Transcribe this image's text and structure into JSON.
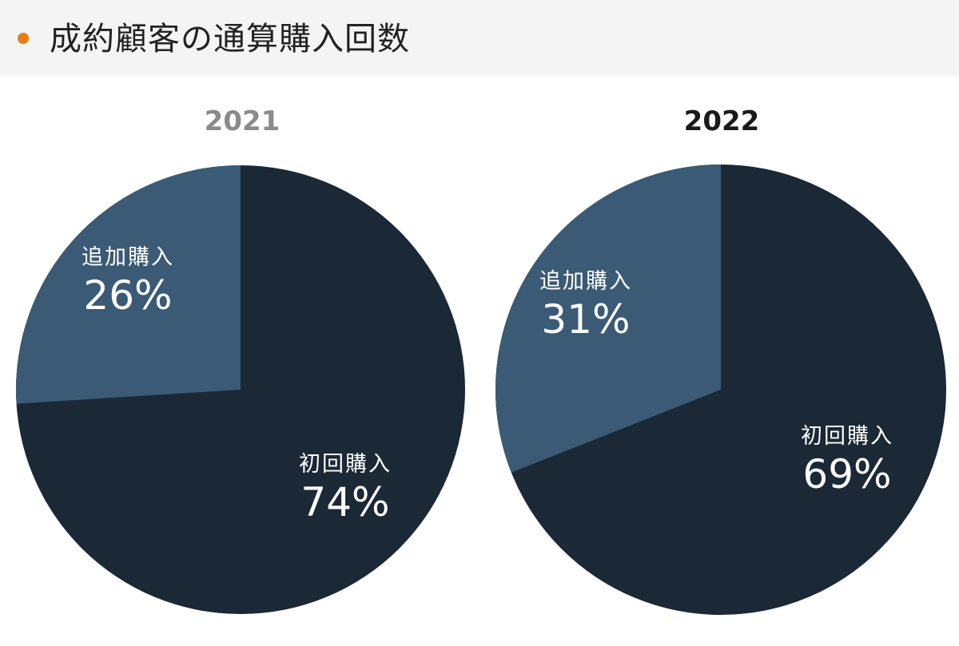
{
  "header": {
    "title": "成約顧客の通算購入回数",
    "bullet_color": "#e67e0f"
  },
  "colors": {
    "first_purchase": "#1b2836",
    "additional_purchase": "#3a5a75"
  },
  "charts": [
    {
      "year": "2021",
      "year_color": "#8a8a8a",
      "slices": [
        {
          "name": "追加購入",
          "pct": "26%"
        },
        {
          "name": "初回購入",
          "pct": "74%"
        }
      ]
    },
    {
      "year": "2022",
      "year_color": "#1a1a1a",
      "slices": [
        {
          "name": "追加購入",
          "pct": "31%"
        },
        {
          "name": "初回購入",
          "pct": "69%"
        }
      ]
    }
  ],
  "chart_data": [
    {
      "type": "pie",
      "title": "2021",
      "categories": [
        "初回購入",
        "追加購入"
      ],
      "values": [
        74,
        26
      ],
      "colors": [
        "#1b2836",
        "#3a5a75"
      ]
    },
    {
      "type": "pie",
      "title": "2022",
      "categories": [
        "初回購入",
        "追加購入"
      ],
      "values": [
        69,
        31
      ],
      "colors": [
        "#1b2836",
        "#3a5a75"
      ]
    }
  ]
}
